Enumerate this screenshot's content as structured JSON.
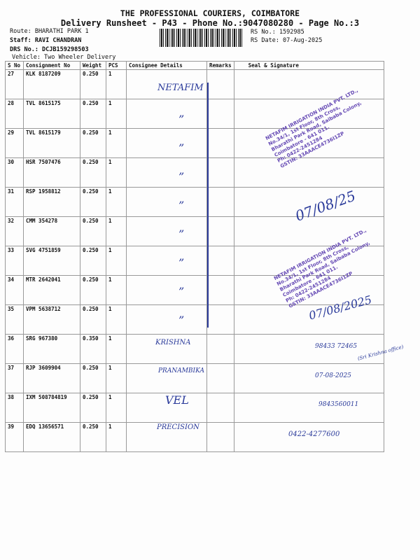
{
  "header": {
    "title": "THE PROFESSIONAL COURIERS, COIMBATORE",
    "subtitle": "Delivery Runsheet - P43 - Phone No.:9047080280 - Page No.:3",
    "route": "Route: BHARATHI PARK 1",
    "staff": "Staff: RAVI CHANDRAN",
    "drs": "DRS No.: DCJB159298503",
    "vehicle": "Vehicle: Two Wheeler Delivery",
    "rs_no": "RS No.: 1592985",
    "rs_date": "RS Date: 07-Aug-2025"
  },
  "table": {
    "columns": [
      "S No",
      "Consignment No",
      "Weight",
      "PCS",
      "Consignee Details",
      "Remarks",
      "Seal & Signature"
    ],
    "rows": [
      {
        "sno": "27",
        "cn": "KLK 8187209",
        "wt": "0.250",
        "pcs": "1"
      },
      {
        "sno": "28",
        "cn": "TVL 8615175",
        "wt": "0.250",
        "pcs": "1"
      },
      {
        "sno": "29",
        "cn": "TVL 8615179",
        "wt": "0.250",
        "pcs": "1"
      },
      {
        "sno": "30",
        "cn": "HSR 7507476",
        "wt": "0.250",
        "pcs": "1"
      },
      {
        "sno": "31",
        "cn": "RSP 1958812",
        "wt": "0.250",
        "pcs": "1"
      },
      {
        "sno": "32",
        "cn": "CMM 354278",
        "wt": "0.250",
        "pcs": "1"
      },
      {
        "sno": "33",
        "cn": "SVG 4751859",
        "wt": "0.250",
        "pcs": "1"
      },
      {
        "sno": "34",
        "cn": "MTR 2642041",
        "wt": "0.250",
        "pcs": "1"
      },
      {
        "sno": "35",
        "cn": "VPM 5638712",
        "wt": "0.250",
        "pcs": "1"
      },
      {
        "sno": "36",
        "cn": "SRG 967380",
        "wt": "0.350",
        "pcs": "1"
      },
      {
        "sno": "37",
        "cn": "RJP 3609904",
        "wt": "0.250",
        "pcs": "1"
      },
      {
        "sno": "38",
        "cn": "IXM 508784819",
        "wt": "0.250",
        "pcs": "1"
      },
      {
        "sno": "39",
        "cn": "EDQ 13656571",
        "wt": "0.250",
        "pcs": "1"
      }
    ]
  },
  "handwriting": {
    "netafim": "NETAFIM",
    "ditto": "”",
    "krishna": "KRISHNA",
    "pranambika": "PRANAMBIKA",
    "vel": "VEL",
    "precision": "PRECISION",
    "date1": "07/08/25",
    "date2": "07/08/2025",
    "phone1": "98433 72465",
    "note1": "(Sri Krishna office)",
    "date3": "07-08-2025",
    "phone2": "9843560011",
    "phone3": "0422-4277600"
  },
  "stamp": {
    "line1": "NETAFIM IRRIGATION INDIA PVT. LTD.,",
    "line2": "No.34/1, 1st Floor, 8th Cross,",
    "line3": "Bharathi Park Road, Saibaba Colony,",
    "line4": "Coimbatore - 641 011.",
    "line5": "Ph: 0422-2451284",
    "line6": "GSTIN: 33AAACE4736I1ZP"
  }
}
